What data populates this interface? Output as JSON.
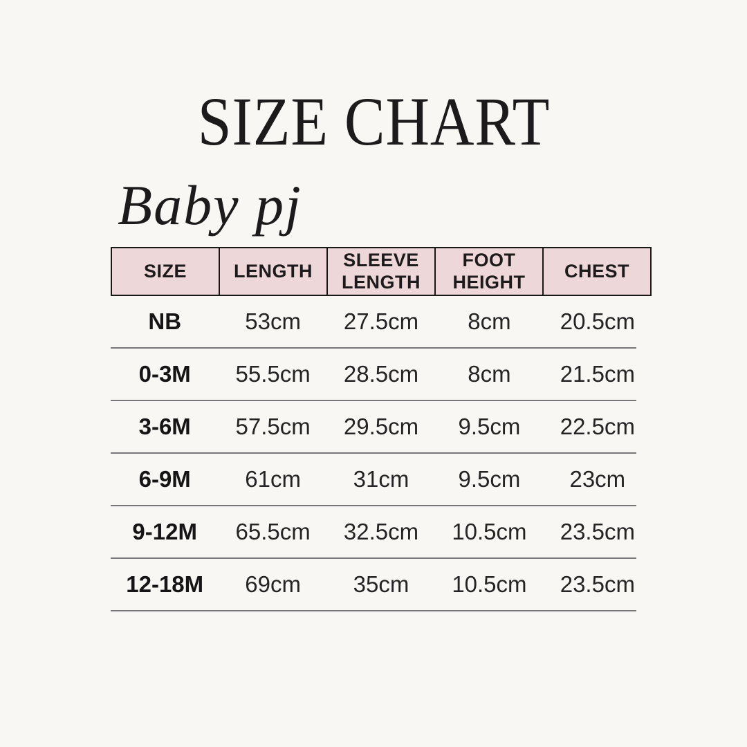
{
  "page": {
    "background_color": "#f9f7f3",
    "text_color": "#1d1a1b"
  },
  "title": "SIZE CHART",
  "brand": "Baby pj",
  "chart_data": {
    "type": "table",
    "title": "SIZE CHART",
    "subtitle": "Baby pj",
    "columns": [
      "SIZE",
      "LENGTH",
      "SLEEVE LENGTH",
      "FOOT HEIGHT",
      "CHEST"
    ],
    "rows": [
      [
        "NB",
        "53cm",
        "27.5cm",
        "8cm",
        "20.5cm"
      ],
      [
        "0-3M",
        "55.5cm",
        "28.5cm",
        "8cm",
        "21.5cm"
      ],
      [
        "3-6M",
        "57.5cm",
        "29.5cm",
        "9.5cm",
        "22.5cm"
      ],
      [
        "6-9M",
        "61cm",
        "31cm",
        "9.5cm",
        "23cm"
      ],
      [
        "9-12M",
        "65.5cm",
        "32.5cm",
        "10.5cm",
        "23.5cm"
      ],
      [
        "12-18M",
        "69cm",
        "35cm",
        "10.5cm",
        "23.5cm"
      ]
    ],
    "header_bg_color": "#eed7d9",
    "divider_color": "#787676",
    "border_color": "#1b1818",
    "layout": {
      "grid": "horizontal dividers only in body, full borders in header",
      "units": "cm"
    }
  }
}
